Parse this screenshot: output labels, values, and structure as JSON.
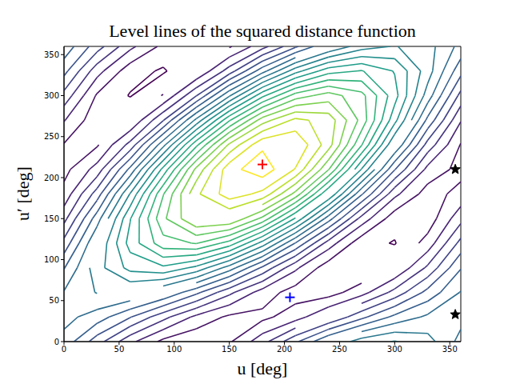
{
  "chart_data": {
    "type": "contour",
    "title": "Level lines of the squared distance function",
    "x_label": "u [deg]",
    "y_label": "u′ [deg]",
    "xlim": [
      0,
      360
    ],
    "ylim": [
      0,
      360
    ],
    "xticks": [
      0,
      50,
      100,
      150,
      200,
      250,
      300,
      350
    ],
    "yticks": [
      0,
      50,
      100,
      150,
      200,
      250,
      300,
      350
    ],
    "grid": false,
    "grid_x": [
      0,
      30,
      60,
      90,
      120,
      150,
      180,
      210,
      240,
      270,
      300,
      330,
      360
    ],
    "grid_y": [
      0,
      30,
      60,
      90,
      120,
      150,
      180,
      210,
      240,
      270,
      300,
      330,
      360
    ],
    "z": [
      [
        1.4,
        1.07,
        0.74,
        0.51,
        0.43,
        0.53,
        0.79,
        1.12,
        1.45,
        1.68,
        1.76,
        1.66,
        1.4
      ],
      [
        1.5,
        1.38,
        1.16,
        0.9,
        0.66,
        0.52,
        0.51,
        0.63,
        0.85,
        1.11,
        1.34,
        1.48,
        1.5
      ],
      [
        1.46,
        1.61,
        1.6,
        1.45,
        1.19,
        0.89,
        0.63,
        0.48,
        0.48,
        0.64,
        0.9,
        1.2,
        1.46
      ],
      [
        1.29,
        1.69,
        1.95,
        2.02,
        1.86,
        1.53,
        1.12,
        0.73,
        0.46,
        0.4,
        0.55,
        0.88,
        1.29
      ],
      [
        1.05,
        1.6,
        2.11,
        2.44,
        2.51,
        2.29,
        1.84,
        1.29,
        0.78,
        0.45,
        0.39,
        0.61,
        1.05
      ],
      [
        0.8,
        1.38,
        2.04,
        2.62,
        2.95,
        2.95,
        2.61,
        2.03,
        1.37,
        0.79,
        0.46,
        0.46,
        0.8
      ],
      [
        0.6,
        1.07,
        1.76,
        2.49,
        3.07,
        3.33,
        3.21,
        2.75,
        2.05,
        1.32,
        0.74,
        0.48,
        0.6
      ],
      [
        0.5,
        0.76,
        1.34,
        2.1,
        2.84,
        3.35,
        3.49,
        3.24,
        2.66,
        1.89,
        1.16,
        0.65,
        0.5
      ],
      [
        0.54,
        0.53,
        0.9,
        1.55,
        2.31,
        2.98,
        3.37,
        3.39,
        3.02,
        2.36,
        1.6,
        0.94,
        0.54
      ],
      [
        0.71,
        0.45,
        0.55,
        0.99,
        1.64,
        2.33,
        2.88,
        3.14,
        3.04,
        2.6,
        1.95,
        1.26,
        0.71
      ],
      [
        0.95,
        0.53,
        0.39,
        0.56,
        0.99,
        1.58,
        2.16,
        2.57,
        2.72,
        2.55,
        2.11,
        1.53,
        0.95
      ],
      [
        1.2,
        0.76,
        0.46,
        0.38,
        0.55,
        0.92,
        1.39,
        1.84,
        2.14,
        2.21,
        2.04,
        1.67,
        1.2
      ],
      [
        1.4,
        1.07,
        0.74,
        0.51,
        0.43,
        0.53,
        0.79,
        1.12,
        1.45,
        1.68,
        1.76,
        1.66,
        1.4
      ]
    ],
    "levels": [
      0.4,
      0.55,
      0.7,
      0.85,
      1.0,
      1.15,
      1.3,
      1.45,
      1.6,
      1.75,
      1.9,
      2.05,
      2.2,
      2.35,
      2.5,
      2.65,
      2.8,
      2.95,
      3.1,
      3.25,
      3.4
    ],
    "markers": [
      {
        "x": 180,
        "y": 216,
        "color": "#ff0000",
        "marker": "plus"
      },
      {
        "x": 205,
        "y": 54,
        "color": "#0000ff",
        "marker": "plus"
      },
      {
        "x": 355,
        "y": 210,
        "color": "#000000",
        "marker": "star"
      },
      {
        "x": 355,
        "y": 33,
        "color": "#000000",
        "marker": "star"
      }
    ]
  }
}
